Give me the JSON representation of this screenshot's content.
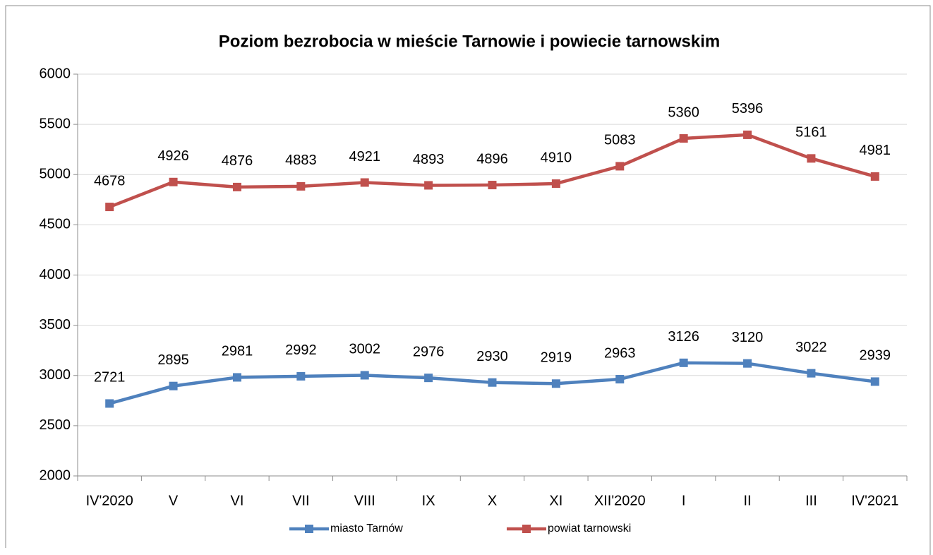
{
  "chart_data": {
    "type": "line",
    "title": "Poziom bezrobocia w mieście Tarnowie i powiecie tarnowskim",
    "categories": [
      "IV'2020",
      "V",
      "VI",
      "VII",
      "VIII",
      "IX",
      "X",
      "XI",
      "XII'2020",
      "I",
      "II",
      "III",
      "IV'2021"
    ],
    "series": [
      {
        "name": "miasto Tarnów",
        "color": "#4f81bd",
        "values": [
          2721,
          2895,
          2981,
          2992,
          3002,
          2976,
          2930,
          2919,
          2963,
          3126,
          3120,
          3022,
          2939
        ]
      },
      {
        "name": "powiat tarnowski",
        "color": "#c0504d",
        "values": [
          4678,
          4926,
          4876,
          4883,
          4921,
          4893,
          4896,
          4910,
          5083,
          5360,
          5396,
          5161,
          4981
        ]
      }
    ],
    "ylim": [
      2000,
      6000
    ],
    "yticks": [
      2000,
      2500,
      3000,
      3500,
      4000,
      4500,
      5000,
      5500,
      6000
    ],
    "grid": true,
    "legend": "bottom"
  }
}
